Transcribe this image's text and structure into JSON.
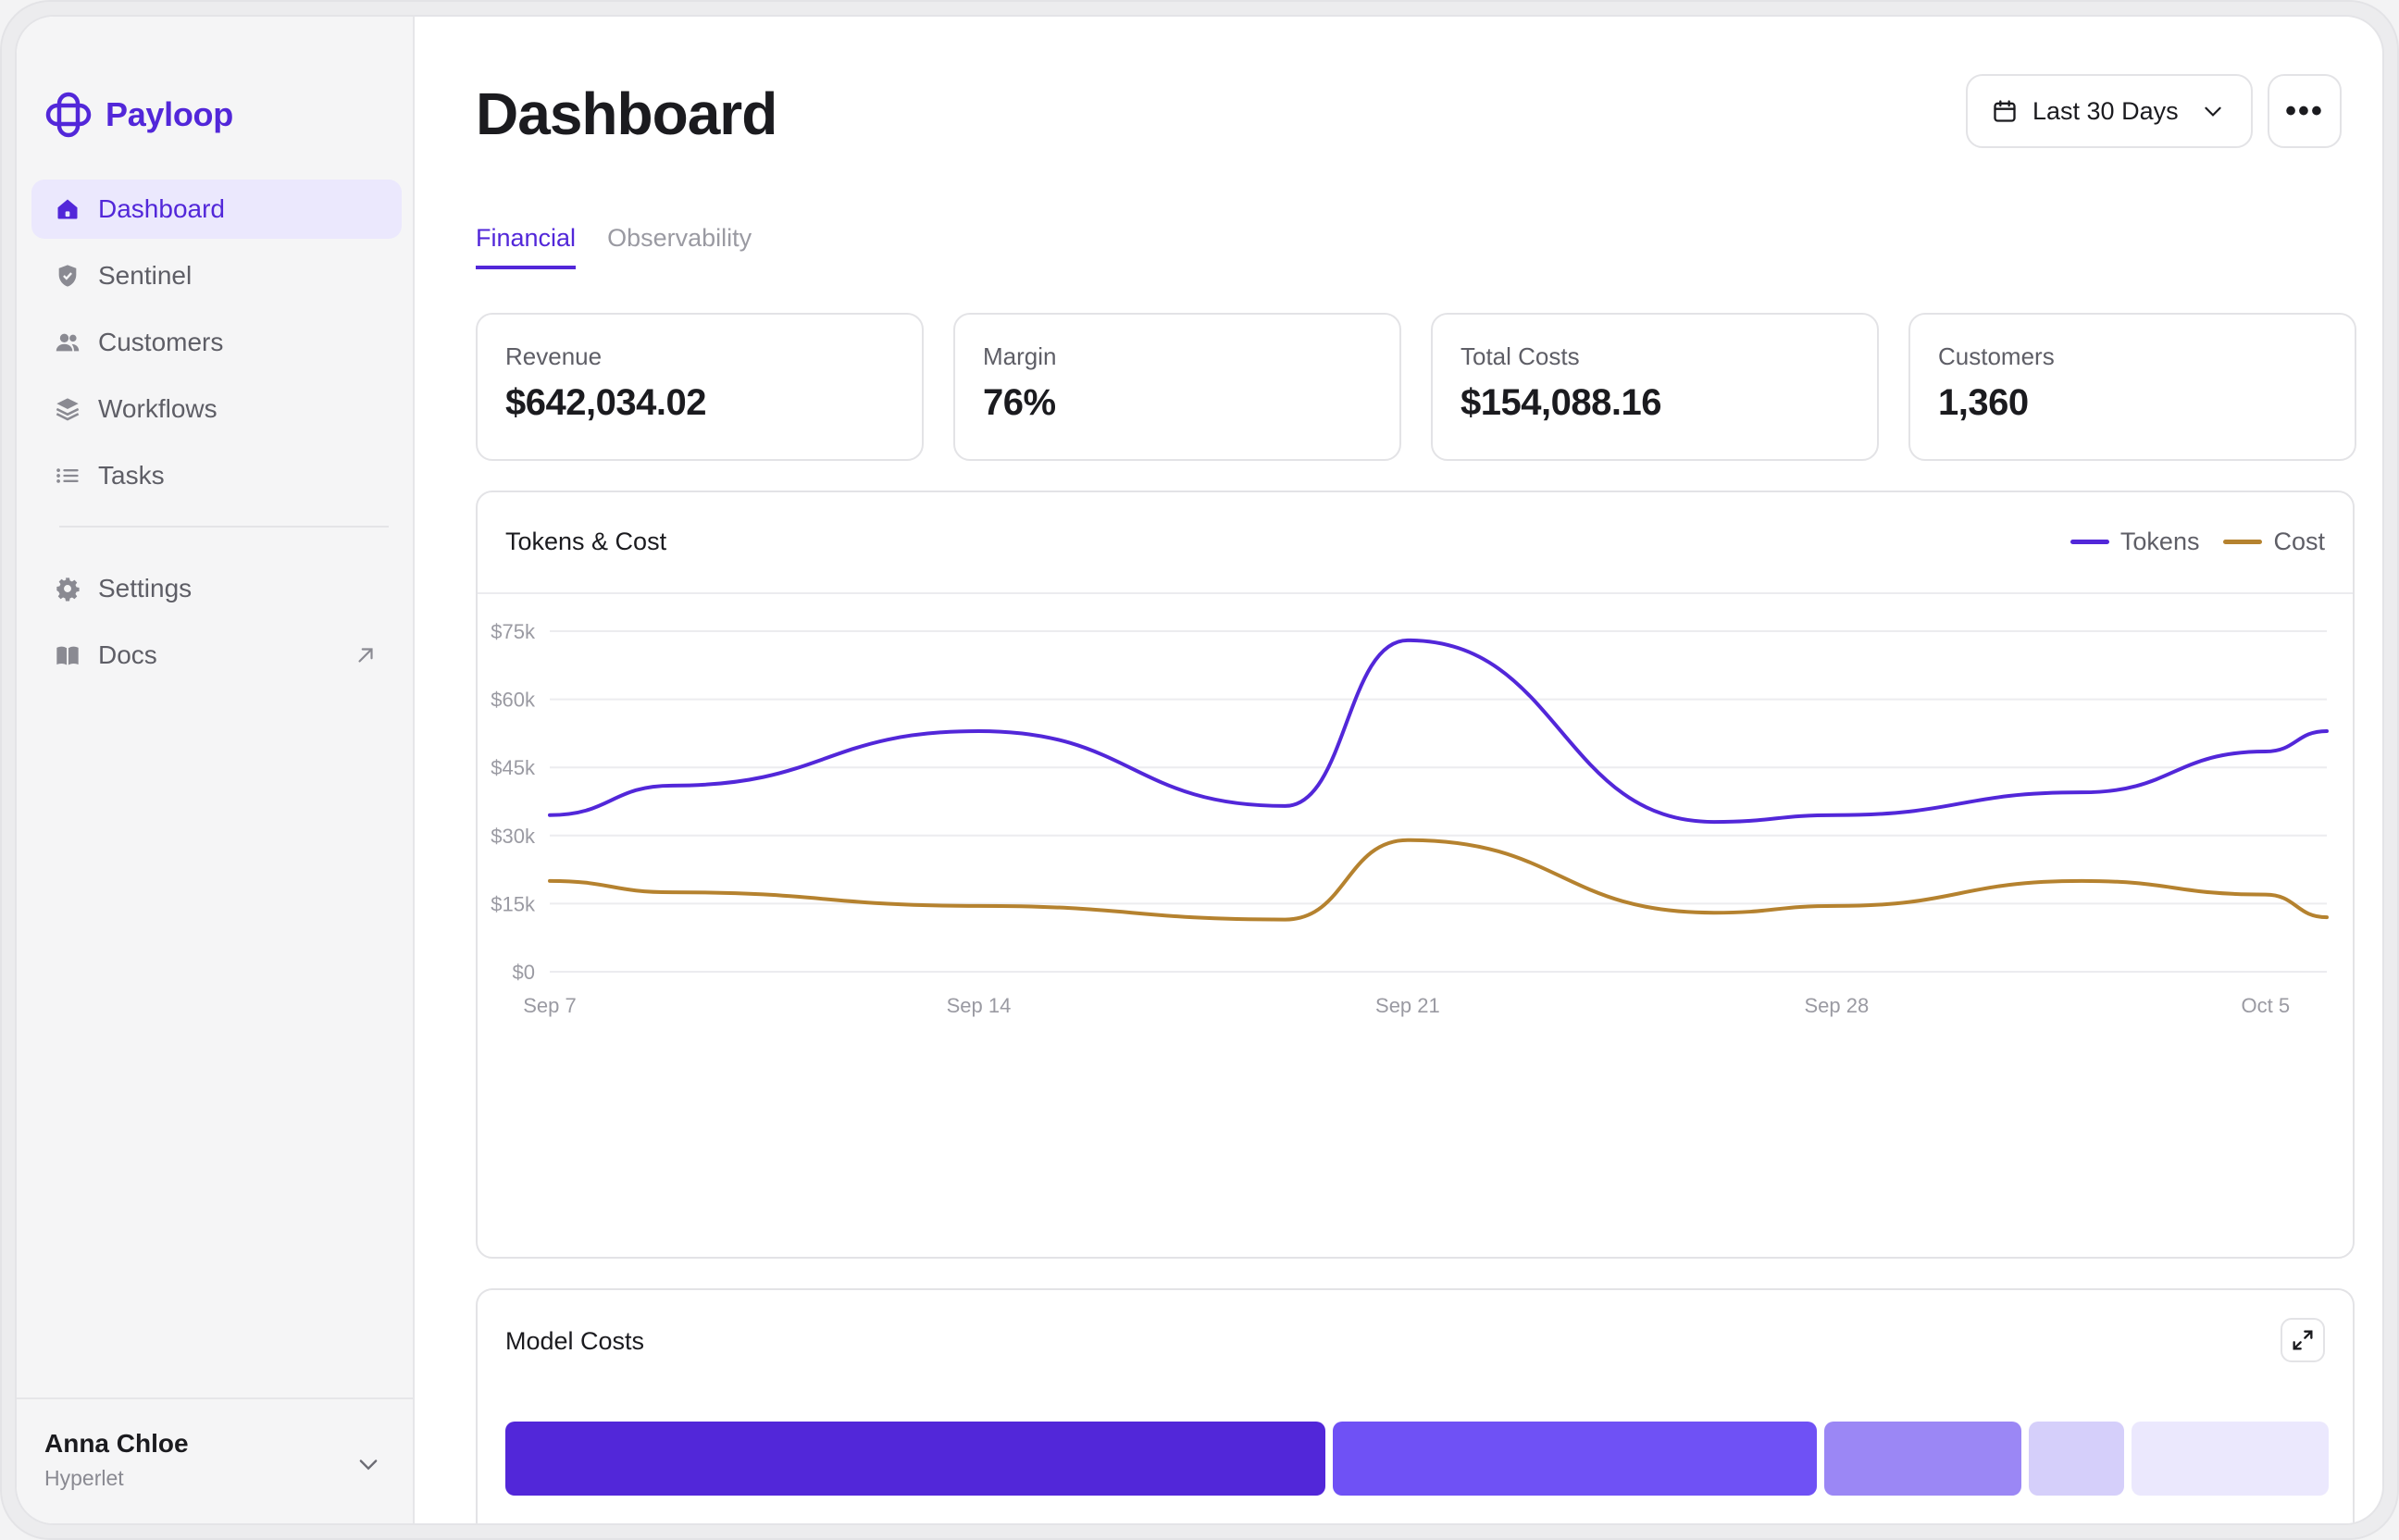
{
  "brand": {
    "name": "Payloop",
    "color": "#5227d9",
    "icon": "payloop-logo-icon"
  },
  "sidebar": {
    "items": [
      {
        "label": "Dashboard",
        "icon": "home-icon",
        "active": true
      },
      {
        "label": "Sentinel",
        "icon": "shield-icon"
      },
      {
        "label": "Customers",
        "icon": "users-icon"
      },
      {
        "label": "Workflows",
        "icon": "layers-icon"
      },
      {
        "label": "Tasks",
        "icon": "list-icon"
      }
    ],
    "secondary": [
      {
        "label": "Settings",
        "icon": "gear-icon"
      },
      {
        "label": "Docs",
        "icon": "book-icon",
        "external_icon": "external-link-icon"
      }
    ],
    "user": {
      "name": "Anna Chloe",
      "org": "Hyperlet"
    }
  },
  "header": {
    "title": "Dashboard",
    "date_range": "Last 30 Days",
    "more_label": "•••"
  },
  "tabs": [
    {
      "label": "Financial",
      "active": true
    },
    {
      "label": "Observability",
      "active": false
    }
  ],
  "stats": [
    {
      "label": "Revenue",
      "value": "$642,034.02"
    },
    {
      "label": "Margin",
      "value": "76%"
    },
    {
      "label": "Total Costs",
      "value": "$154,088.16"
    },
    {
      "label": "Customers",
      "value": "1,360"
    }
  ],
  "chart_data": {
    "type": "line",
    "title": "Tokens & Cost",
    "x_ticks": [
      "Sep 7",
      "Sep 14",
      "Sep 21",
      "Sep 28",
      "Oct 5"
    ],
    "y_ticks": [
      "$0",
      "$15k",
      "$30k",
      "$45k",
      "$60k",
      "$75k"
    ],
    "ylim": [
      0,
      75000
    ],
    "grid": true,
    "legend_position": "top-right",
    "x": [
      "Sep 7",
      "Sep 9",
      "Sep 14",
      "Sep 19",
      "Sep 21",
      "Sep 26",
      "Sep 28",
      "Oct 2",
      "Oct 5",
      "Oct 6"
    ],
    "series": [
      {
        "name": "Tokens",
        "color": "#5227d9",
        "values": [
          34500,
          41000,
          53000,
          36500,
          73000,
          33000,
          34500,
          39500,
          48500,
          53000
        ]
      },
      {
        "name": "Cost",
        "color": "#b5822f",
        "values": [
          20000,
          17500,
          14500,
          11500,
          29000,
          13000,
          14500,
          20000,
          17000,
          12000
        ]
      }
    ]
  },
  "model_costs": {
    "title": "Model Costs",
    "expand_icon": "expand-icon",
    "segments": [
      {
        "share": 0.415,
        "color": "#5227d9"
      },
      {
        "share": 0.245,
        "color": "#6f51f5"
      },
      {
        "share": 0.1,
        "color": "#9b87f5"
      },
      {
        "share": 0.048,
        "color": "#d5cffa"
      },
      {
        "share": 0.1,
        "color": "#ebe8fd"
      }
    ]
  }
}
